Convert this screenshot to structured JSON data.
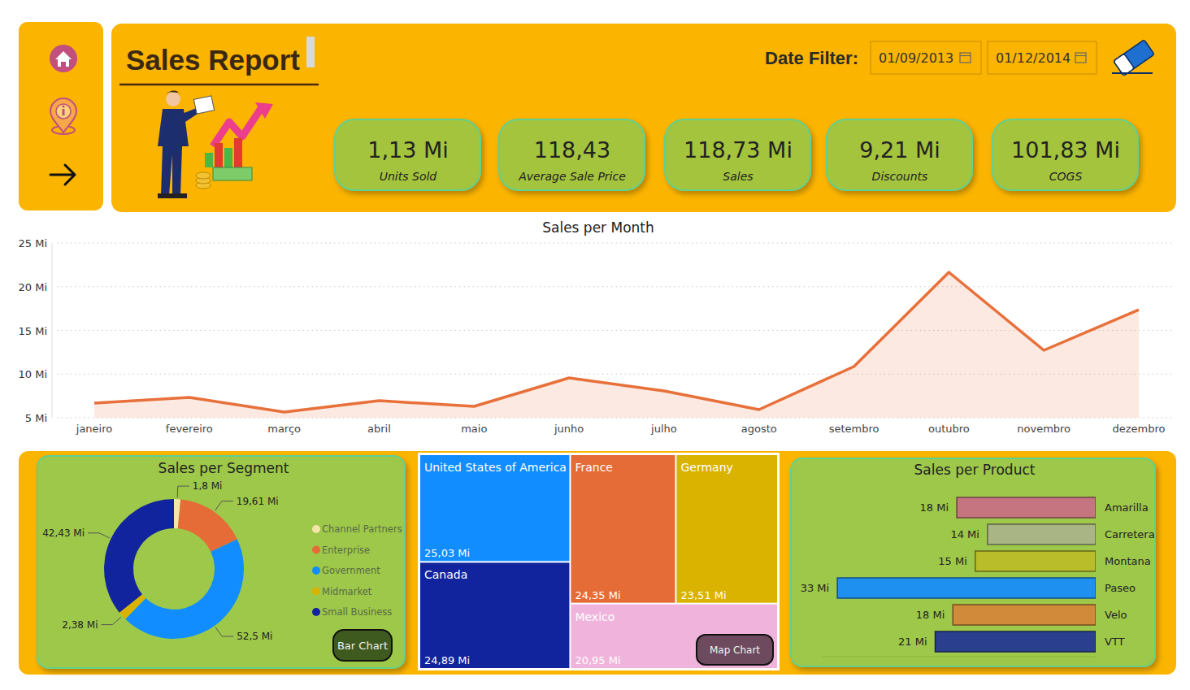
{
  "header": {
    "title": "Sales Report",
    "date_filter_label": "Date Filter:",
    "date_from": "01/09/2013",
    "date_to": "01/12/2014"
  },
  "kpis": [
    {
      "value": "1,13 Mi",
      "label": "Units Sold"
    },
    {
      "value": "118,43",
      "label": "Average Sale Price"
    },
    {
      "value": "118,73 Mi",
      "label": "Sales"
    },
    {
      "value": "9,21 Mi",
      "label": "Discounts"
    },
    {
      "value": "101,83 Mi",
      "label": "COGS"
    }
  ],
  "buttons": {
    "segment": "Bar Chart",
    "country": "Map Chart"
  },
  "chart_data": [
    {
      "type": "line",
      "title": "Sales per Month",
      "categories": [
        "janeiro",
        "fevereiro",
        "março",
        "abril",
        "maio",
        "junho",
        "julho",
        "agosto",
        "setembro",
        "outubro",
        "novembro",
        "dezembro"
      ],
      "values": [
        6.67,
        7.33,
        5.65,
        6.95,
        6.3,
        9.56,
        8.07,
        5.93,
        10.86,
        21.65,
        12.72,
        17.37
      ],
      "color": "#E8703A",
      "ylim": [
        5,
        25
      ],
      "yticks": [
        {
          "value": 5,
          "label": "5 Mi"
        },
        {
          "value": 10,
          "label": "10 Mi"
        },
        {
          "value": 15,
          "label": "15 Mi"
        },
        {
          "value": 20,
          "label": "20 Mi"
        },
        {
          "value": 25,
          "label": "25 Mi"
        }
      ],
      "grid": true
    },
    {
      "type": "pie",
      "title": "Sales per Segment",
      "categories": [
        "Channel Partners",
        "Enterprise",
        "Government",
        "Midmarket",
        "Small Business"
      ],
      "values": [
        1.8,
        19.61,
        52.5,
        2.38,
        42.43
      ],
      "value_labels": [
        "1,8 Mi",
        "19,61 Mi",
        "52,5 Mi",
        "2,38 Mi",
        "42,43 Mi"
      ],
      "colors": [
        "#F3E6A8",
        "#E66C37",
        "#118DFF",
        "#D9B300",
        "#12239E"
      ],
      "data_labels": true,
      "legend": "right"
    },
    {
      "type": "treemap",
      "categories": [
        "United States of America",
        "Canada",
        "France",
        "Germany",
        "Mexico"
      ],
      "values": [
        25.03,
        24.89,
        24.35,
        23.51,
        20.95
      ],
      "value_labels": [
        "25,03 Mi",
        "24,89 Mi",
        "24,35 Mi",
        "23,51 Mi",
        "20,95 Mi"
      ],
      "colors": [
        "#118DFF",
        "#12239E",
        "#E66C37",
        "#D9B300",
        "#F0B4DC"
      ],
      "data_labels": true
    },
    {
      "type": "bar",
      "title": "Sales per Product",
      "orientation": "horizontal",
      "categories": [
        "Amarilla",
        "Carretera",
        "Montana",
        "Paseo",
        "Velo",
        "VTT"
      ],
      "values": [
        17.75,
        13.82,
        15.39,
        33.01,
        18.25,
        20.51
      ],
      "value_labels": [
        "18 Mi",
        "14 Mi",
        "15 Mi",
        "33 Mi",
        "18 Mi",
        "21 Mi"
      ],
      "colors": [
        "#C47580",
        "#A9B584",
        "#B9BD2A",
        "#1E90F0",
        "#D08A3A",
        "#2B3F8F"
      ],
      "xlim": [
        0,
        35
      ],
      "data_labels": true,
      "tick_labels": false
    }
  ]
}
